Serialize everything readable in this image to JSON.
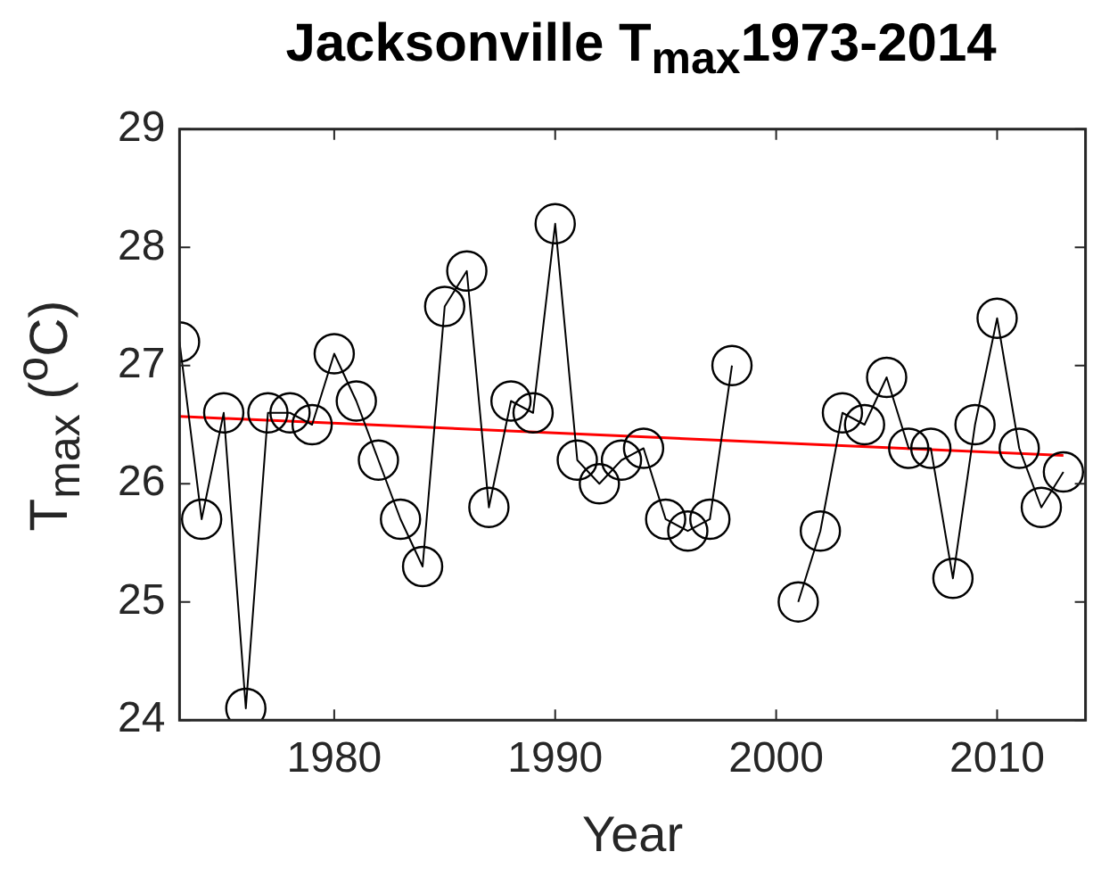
{
  "chart_data": {
    "type": "line",
    "title": "Jacksonville T$_{max}$1973-2014",
    "xlabel": "Year",
    "ylabel": "T$_{max}$ ($^{o}$C)",
    "x": [
      1973,
      1974,
      1975,
      1976,
      1977,
      1978,
      1979,
      1980,
      1981,
      1982,
      1983,
      1984,
      1985,
      1986,
      1987,
      1988,
      1989,
      1990,
      1991,
      1992,
      1993,
      1994,
      1995,
      1996,
      1997,
      1998,
      1999,
      2000,
      2001,
      2002,
      2003,
      2004,
      2005,
      2006,
      2007,
      2008,
      2009,
      2010,
      2011,
      2012,
      2013
    ],
    "series": [
      {
        "color": "#000000",
        "marker": "circle",
        "values": [
          27.2,
          25.7,
          26.6,
          24.1,
          26.6,
          26.6,
          26.5,
          27.1,
          26.7,
          26.2,
          25.7,
          25.3,
          27.5,
          27.8,
          25.8,
          26.7,
          26.6,
          28.2,
          26.2,
          26.0,
          26.2,
          26.3,
          25.7,
          25.6,
          25.7,
          27.0,
          null,
          null,
          25.0,
          25.6,
          26.6,
          26.5,
          26.9,
          26.3,
          26.3,
          25.2,
          26.5,
          27.4,
          26.3,
          25.8,
          26.1
        ]
      },
      {
        "type": "line",
        "color": "#ff0000",
        "marker": "none",
        "x": [
          1973,
          2013
        ],
        "values": [
          26.57,
          26.24
        ]
      }
    ],
    "xlim": [
      1973,
      2014
    ],
    "xticks": [
      1980,
      1990,
      2000,
      2010
    ],
    "ylim": [
      24,
      29
    ],
    "yticks": [
      24,
      25,
      26,
      27,
      28,
      29
    ],
    "grid": false,
    "legend": false
  }
}
